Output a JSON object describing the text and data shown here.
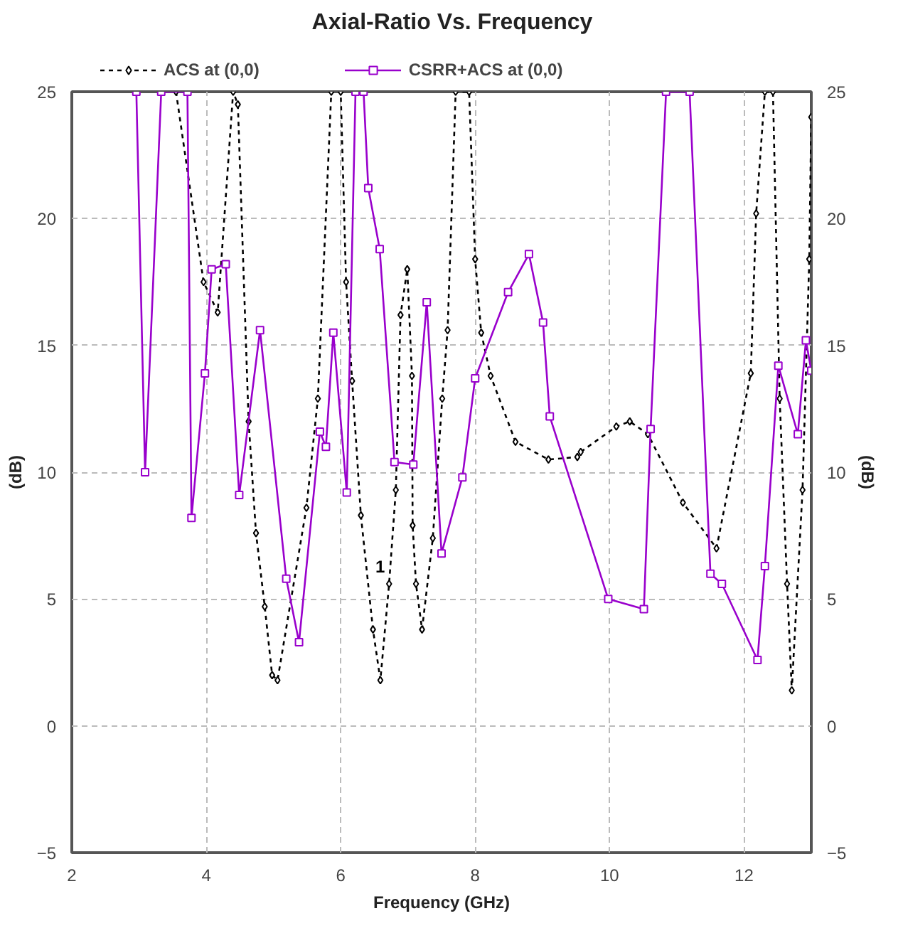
{
  "chart_data": {
    "type": "line",
    "title": "Axial-Ratio Vs. Frequency",
    "xlabel": "Frequency (GHz)",
    "ylabel": "(dB)",
    "y2label": "(dB)",
    "xlim": [
      2,
      13
    ],
    "xticks": [
      2,
      4,
      6,
      8,
      10,
      12
    ],
    "ylim": [
      -5,
      25
    ],
    "yticks": [
      -5,
      0,
      5,
      10,
      15,
      20,
      25
    ],
    "y2lim": [
      -5,
      25
    ],
    "y2ticks": [
      -5,
      0,
      5,
      10,
      15,
      20,
      25
    ],
    "grid": true,
    "legend": "top",
    "annotations": [
      {
        "text": "1",
        "x": 6.72,
        "y": 5.6
      }
    ],
    "series": [
      {
        "name": "ACS at (0,0)",
        "color": "#000000",
        "line_style": "dashed",
        "marker": "diamond",
        "x": [
          3.55,
          3.96,
          4.17,
          4.4,
          4.47,
          4.63,
          4.74,
          4.87,
          4.98,
          5.06,
          5.49,
          5.66,
          5.86,
          6.0,
          6.08,
          6.17,
          6.3,
          6.48,
          6.59,
          6.72,
          6.82,
          6.89,
          6.99,
          7.06,
          7.07,
          7.12,
          7.21,
          7.37,
          7.51,
          7.59,
          7.71,
          7.91,
          8.0,
          8.09,
          8.23,
          8.6,
          9.09,
          9.52,
          9.57,
          10.1,
          10.3,
          10.57,
          11.09,
          11.59,
          12.1,
          12.18,
          12.31,
          12.43,
          12.53,
          12.64,
          12.71,
          12.87,
          12.97,
          13.0
        ],
        "values": [
          25,
          17.5,
          16.3,
          25,
          24.5,
          12.0,
          7.6,
          4.7,
          2.0,
          1.8,
          8.6,
          12.9,
          25,
          25,
          17.5,
          13.6,
          8.3,
          3.8,
          1.8,
          5.6,
          9.3,
          16.2,
          18.0,
          13.8,
          7.9,
          5.6,
          3.8,
          7.4,
          12.9,
          15.6,
          25,
          25,
          18.4,
          15.5,
          13.8,
          11.2,
          10.5,
          10.6,
          10.8,
          11.8,
          12.0,
          11.5,
          8.8,
          7.0,
          13.9,
          20.2,
          25,
          25,
          12.9,
          5.6,
          1.4,
          9.3,
          18.4,
          24.0
        ]
      },
      {
        "name": "CSRR+ACS at (0,0)",
        "color": "#9900cc",
        "line_style": "solid",
        "marker": "square",
        "x": [
          2.96,
          3.09,
          3.33,
          3.72,
          3.78,
          3.98,
          4.08,
          4.29,
          4.49,
          4.8,
          5.19,
          5.38,
          5.69,
          5.78,
          5.89,
          6.09,
          6.22,
          6.34,
          6.41,
          6.58,
          6.8,
          7.08,
          7.28,
          7.5,
          7.81,
          8.0,
          8.49,
          8.8,
          9.01,
          9.11,
          9.98,
          10.51,
          10.61,
          10.84,
          11.19,
          11.5,
          11.67,
          12.2,
          12.31,
          12.51,
          12.8,
          12.92,
          13.0
        ],
        "values": [
          25,
          10.0,
          25,
          25,
          8.2,
          13.9,
          18.0,
          18.2,
          9.1,
          15.6,
          5.8,
          3.3,
          11.6,
          11.0,
          15.5,
          9.2,
          25,
          25,
          21.2,
          18.8,
          10.4,
          10.3,
          16.7,
          6.8,
          9.8,
          13.7,
          17.1,
          18.6,
          15.9,
          12.2,
          5.0,
          4.6,
          11.7,
          25,
          25,
          6.0,
          5.6,
          2.6,
          6.3,
          14.2,
          11.5,
          15.2,
          14.0
        ]
      }
    ]
  }
}
